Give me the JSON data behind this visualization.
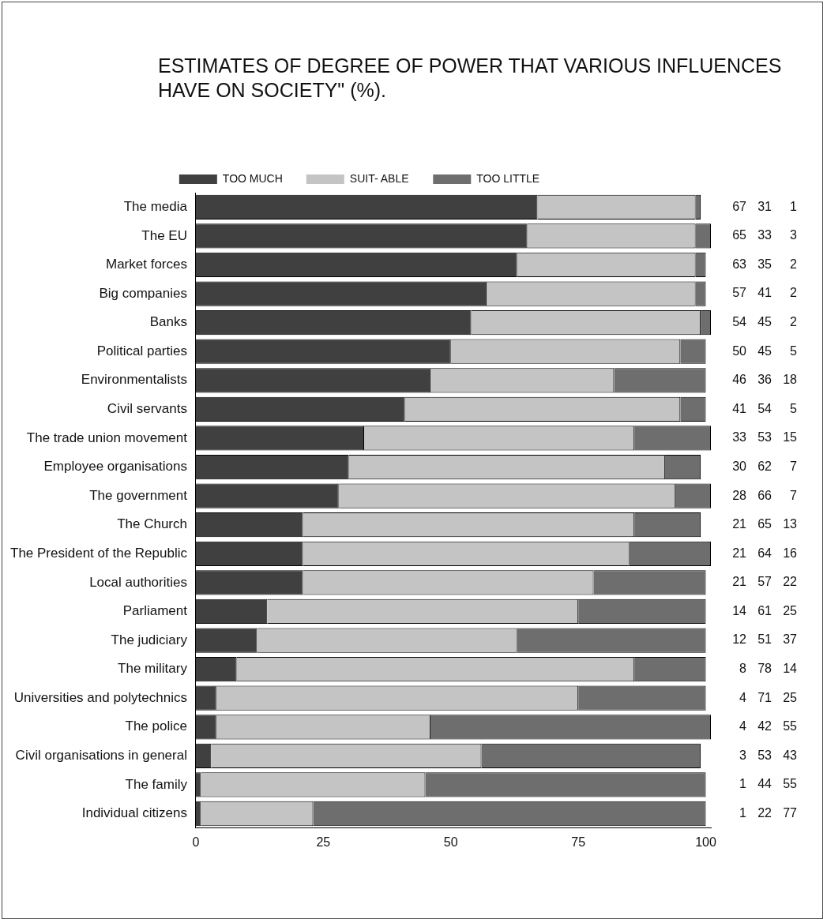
{
  "chart_data": {
    "type": "bar",
    "orientation": "horizontal",
    "stacked": true,
    "title": "ESTIMATES OF DEGREE OF POWER THAT VARIOUS INFLUENCES HAVE ON SOCIETY\" (%).",
    "categories": [
      "The media",
      "The EU",
      "Market forces",
      "Big companies",
      "Banks",
      "Political parties",
      "Environmentalists",
      "Civil servants",
      "The trade union movement",
      "Employee organisations",
      "The government",
      "The Church",
      "The President of the Republic",
      "Local authorities",
      "Parliament",
      "The judiciary",
      "The military",
      "Universities and polytechnics",
      "The police",
      "Civil organisations in general",
      "The family",
      "Individual citizens"
    ],
    "series": [
      {
        "name": "TOO MUCH",
        "color": "#404040",
        "values": [
          67,
          65,
          63,
          57,
          54,
          50,
          46,
          41,
          33,
          30,
          28,
          21,
          21,
          21,
          14,
          12,
          8,
          4,
          4,
          3,
          1,
          1
        ]
      },
      {
        "name": "SUIT- ABLE",
        "color": "#c4c4c4",
        "values": [
          31,
          33,
          35,
          41,
          45,
          45,
          36,
          54,
          53,
          62,
          66,
          65,
          64,
          57,
          61,
          51,
          78,
          71,
          42,
          53,
          44,
          22
        ]
      },
      {
        "name": "TOO LITTLE",
        "color": "#6e6e6e",
        "values": [
          1,
          3,
          2,
          2,
          2,
          5,
          18,
          5,
          15,
          7,
          7,
          13,
          16,
          22,
          25,
          37,
          14,
          25,
          55,
          43,
          55,
          77
        ]
      }
    ],
    "xlim": [
      0,
      101
    ],
    "xticks": [
      0,
      25,
      50,
      75,
      100
    ],
    "grid": false,
    "legend": "top",
    "data_labels": true
  }
}
